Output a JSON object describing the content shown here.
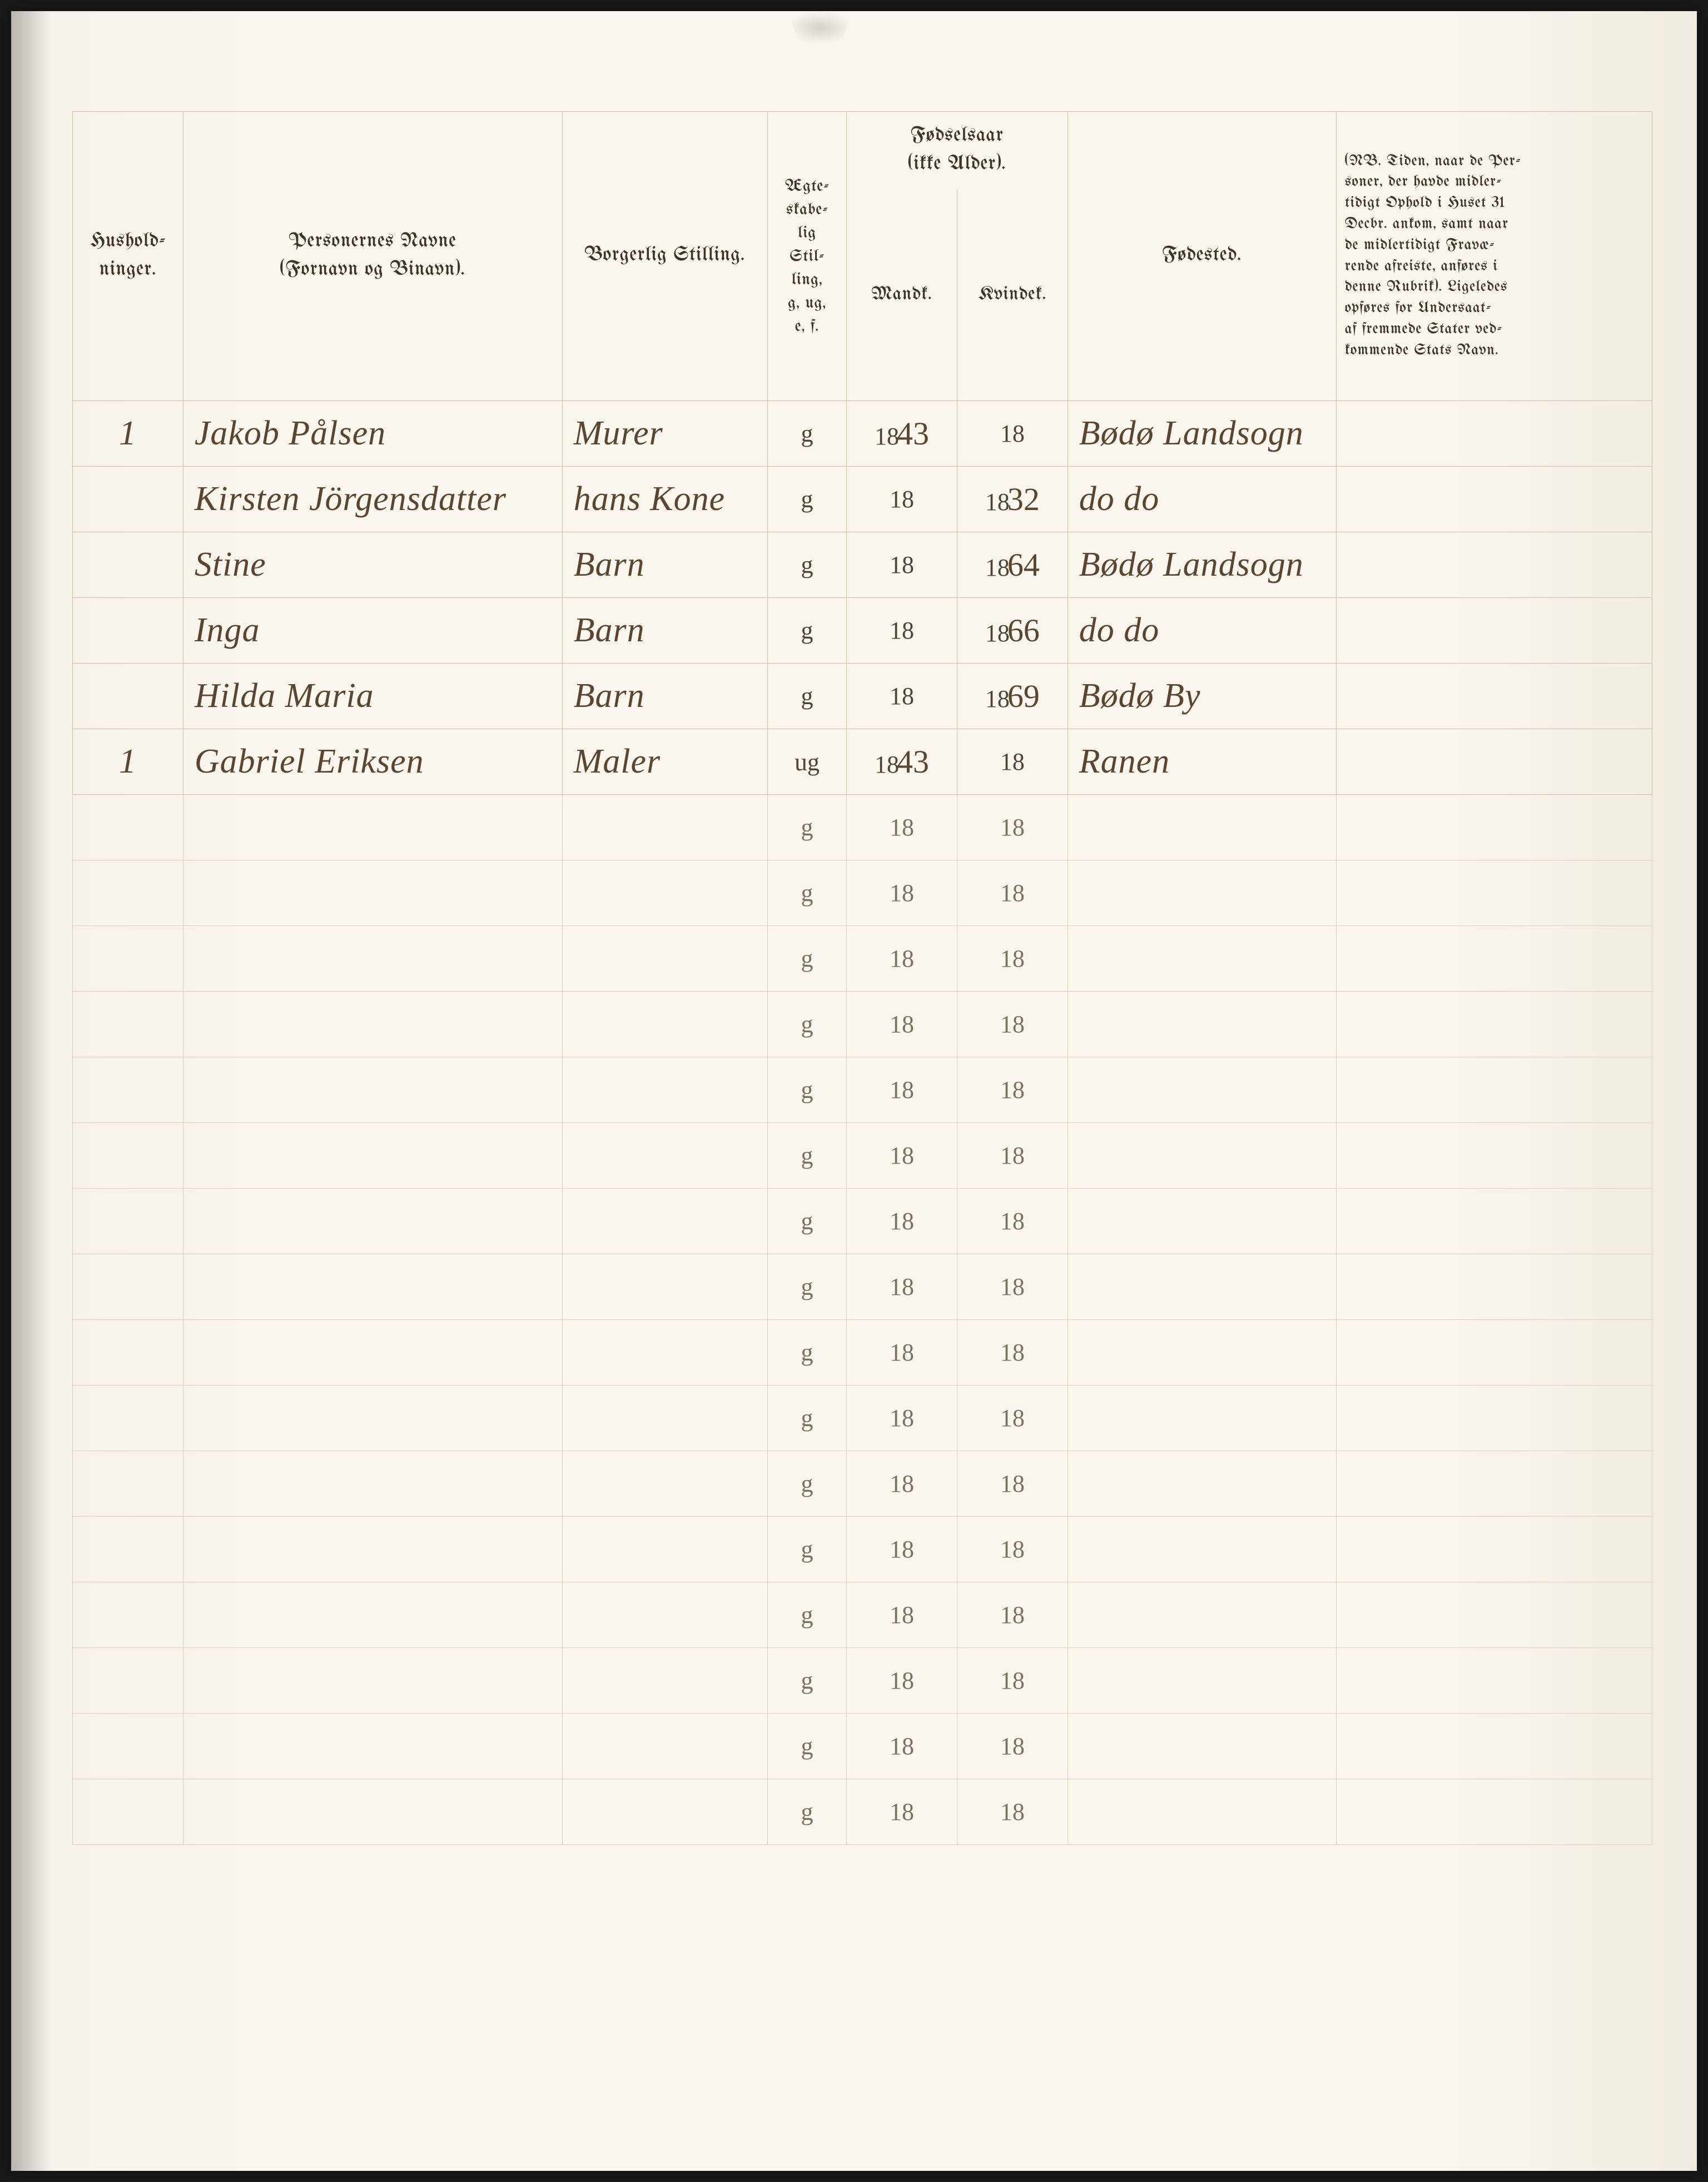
{
  "headers": {
    "household": "Hushold-\nninger.",
    "names": "Personernes Navne\n(Fornavn og Binavn).",
    "occupation": "Borgerlig Stilling.",
    "marital": "Ægte-\nskabe-\nlig\nStil-\nling,\ng, ug,\ne, f.",
    "birthyear_group": "Fødselsaar\n(ikke Alder).",
    "male": "Mandk.",
    "female": "Kvindek.",
    "birthplace": "Fødested.",
    "nb_note": "(NB. Tiden, naar de Per-\nsoner, der havde midler-\ntidigt Ophold i Huset 31\nDecbr. ankom, samt naar\nde midlertidigt Fravæ-\nrende afreiste, anføres i\ndenne Rubrik). Ligeledes\nopføres for Undersaat-\naf fremmede Stater ved-\nkommende Stats Navn."
  },
  "preprinted": {
    "g": "g",
    "ug": "ug",
    "y18": "18"
  },
  "rows": [
    {
      "hh": "1",
      "name": "Jakob Pålsen",
      "occ": "Murer",
      "marital": "g",
      "m_year": "43",
      "f_year": "",
      "place": "Bødø Landsogn"
    },
    {
      "hh": "",
      "name": "Kirsten Jörgensdatter",
      "occ": "hans Kone",
      "marital": "g",
      "m_year": "",
      "f_year": "32",
      "place": "do    do"
    },
    {
      "hh": "",
      "name": "Stine",
      "occ": "Barn",
      "marital": "g",
      "m_year": "",
      "f_year": "64",
      "place": "Bødø Landsogn"
    },
    {
      "hh": "",
      "name": "Inga",
      "occ": "Barn",
      "marital": "g",
      "m_year": "",
      "f_year": "66",
      "place": "do    do"
    },
    {
      "hh": "",
      "name": "Hilda Maria",
      "occ": "Barn",
      "marital": "g",
      "m_year": "",
      "f_year": "69",
      "place": "Bødø By"
    },
    {
      "hh": "1",
      "name": "Gabriel Eriksen",
      "occ": "Maler",
      "marital": "ug",
      "m_year": "43",
      "f_year": "",
      "place": "Ranen"
    }
  ],
  "empty_row_count": 16,
  "colors": {
    "paper": "#faf6ee",
    "ink_printed": "#4a4535",
    "ink_handwritten": "#5a4530",
    "rule_lines": "#c8bfa8"
  }
}
